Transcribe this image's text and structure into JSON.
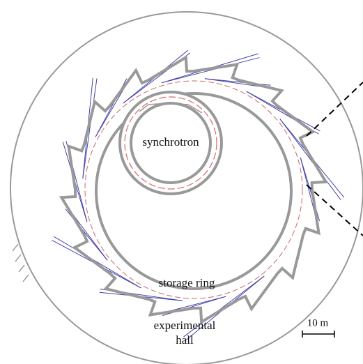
{
  "labels": {
    "synchrotron": "synchrotron",
    "storage_ring": "storage ring",
    "hall_line1": "experimental",
    "hall_line2": "hall",
    "scale": "10 m"
  }
}
